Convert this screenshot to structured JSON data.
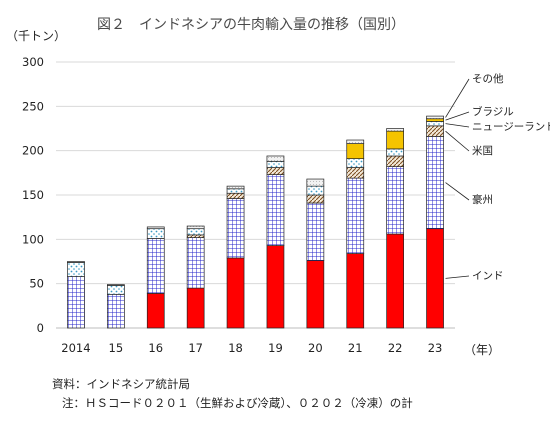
{
  "chart_data": {
    "type": "bar",
    "stacked": true,
    "title": "図２　インドネシアの牛肉輸入量の推移（国別）",
    "yunit": "（千トン）",
    "xunit": "（年）",
    "categories": [
      "2014",
      "15",
      "16",
      "17",
      "18",
      "19",
      "20",
      "21",
      "22",
      "23"
    ],
    "yticks": [
      0,
      50,
      100,
      150,
      200,
      250,
      300
    ],
    "ylim": [
      0,
      300
    ],
    "grid": true,
    "series": [
      {
        "name": "インド",
        "color": "#ff0000",
        "pattern": "solid",
        "values": [
          0,
          0,
          39,
          45,
          79,
          93,
          76,
          84,
          106,
          112
        ]
      },
      {
        "name": "豪州",
        "color": "#1f1fbf",
        "pattern": "grid",
        "values": [
          58,
          38,
          62,
          57,
          67,
          80,
          65,
          85,
          76,
          104
        ]
      },
      {
        "name": "米国",
        "color": "#8b5a2b",
        "pattern": "hatch",
        "values": [
          0,
          0,
          0,
          3,
          6,
          8,
          9,
          12,
          12,
          12
        ]
      },
      {
        "name": "ニュージーランド",
        "color": "#4aa3c8",
        "pattern": "dots",
        "values": [
          16,
          10,
          11,
          7,
          5,
          7,
          10,
          10,
          8,
          5
        ]
      },
      {
        "name": "ブラジル",
        "color": "#f5c400",
        "pattern": "yellow",
        "values": [
          0,
          0,
          0,
          0,
          0,
          0,
          0,
          17,
          20,
          3
        ]
      },
      {
        "name": "その他",
        "color": "#888888",
        "pattern": "light",
        "values": [
          1,
          1,
          2,
          3,
          3,
          6,
          8,
          4,
          3,
          3
        ]
      }
    ]
  },
  "notes": {
    "source": "資料：インドネシア統計局",
    "note": "注：ＨＳコード０２０１（生鮮および冷蔵）、０２０２（冷凍）の計"
  }
}
